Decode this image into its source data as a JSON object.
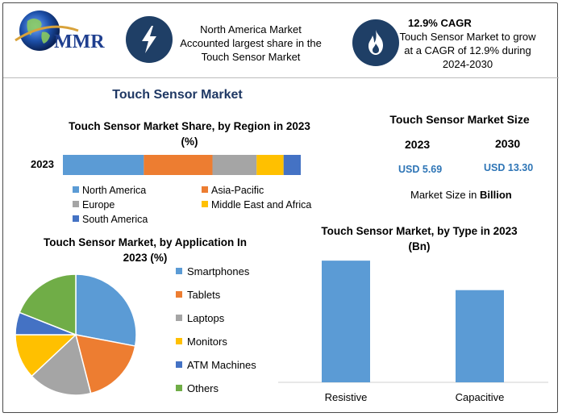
{
  "logo": {
    "text": "MMR"
  },
  "highlights": [
    {
      "icon": "lightning-icon",
      "lines": [
        "North America Market",
        "Accounted largest share in the",
        "Touch Sensor Market"
      ]
    },
    {
      "icon": "flame-icon",
      "heading": "12.9% CAGR",
      "lines": [
        "Touch Sensor Market to grow",
        "at a CAGR of 12.9% during",
        "2024-2030"
      ]
    }
  ],
  "main_title": "Touch Sensor Market",
  "market_size": {
    "title": "Touch Sensor Market Size",
    "year1": "2023",
    "value1": "USD 5.69",
    "year2": "2030",
    "value2": "USD 13.30",
    "unit_prefix": "Market Size in ",
    "unit_bold": "Billion"
  },
  "colors": {
    "blue": "#5b9bd5",
    "orange": "#ed7d31",
    "gray": "#a5a5a5",
    "yellow": "#ffc000",
    "darkblue": "#4472c4",
    "green": "#70ad47",
    "navy": "#1f3864"
  },
  "chart_data": [
    {
      "type": "bar",
      "orientation": "horizontal-stacked",
      "title_line1": "Touch Sensor Market Share, by Region in 2023",
      "title_line2": "(%)",
      "categories": [
        "2023"
      ],
      "series": [
        {
          "name": "North America",
          "values": [
            33
          ],
          "color": "#5b9bd5"
        },
        {
          "name": "Asia-Pacific",
          "values": [
            28
          ],
          "color": "#ed7d31"
        },
        {
          "name": "Europe",
          "values": [
            18
          ],
          "color": "#a5a5a5"
        },
        {
          "name": "Middle East and Africa",
          "values": [
            11
          ],
          "color": "#ffc000"
        },
        {
          "name": "South America",
          "values": [
            7
          ],
          "color": "#4472c4"
        }
      ],
      "legend_position": "bottom"
    },
    {
      "type": "pie",
      "title_line1": "Touch Sensor Market, by Application In",
      "title_line2": "2023 (%)",
      "slices": [
        {
          "label": "Smartphones",
          "value": 28,
          "color": "#5b9bd5"
        },
        {
          "label": "Tablets",
          "value": 18,
          "color": "#ed7d31"
        },
        {
          "label": "Laptops",
          "value": 17,
          "color": "#a5a5a5"
        },
        {
          "label": "Monitors",
          "value": 12,
          "color": "#ffc000"
        },
        {
          "label": "ATM Machines",
          "value": 6,
          "color": "#4472c4"
        },
        {
          "label": "Others",
          "value": 19,
          "color": "#70ad47"
        }
      ],
      "legend_position": "right"
    },
    {
      "type": "bar",
      "title_line1": "Touch Sensor Market, by Type in 2023",
      "title_line2": "(Bn)",
      "categories": [
        "Resistive",
        "Capacitive"
      ],
      "values": [
        3.3,
        2.5
      ],
      "ylim": [
        0,
        3.5
      ],
      "color": "#5b9bd5",
      "grid": false
    }
  ]
}
